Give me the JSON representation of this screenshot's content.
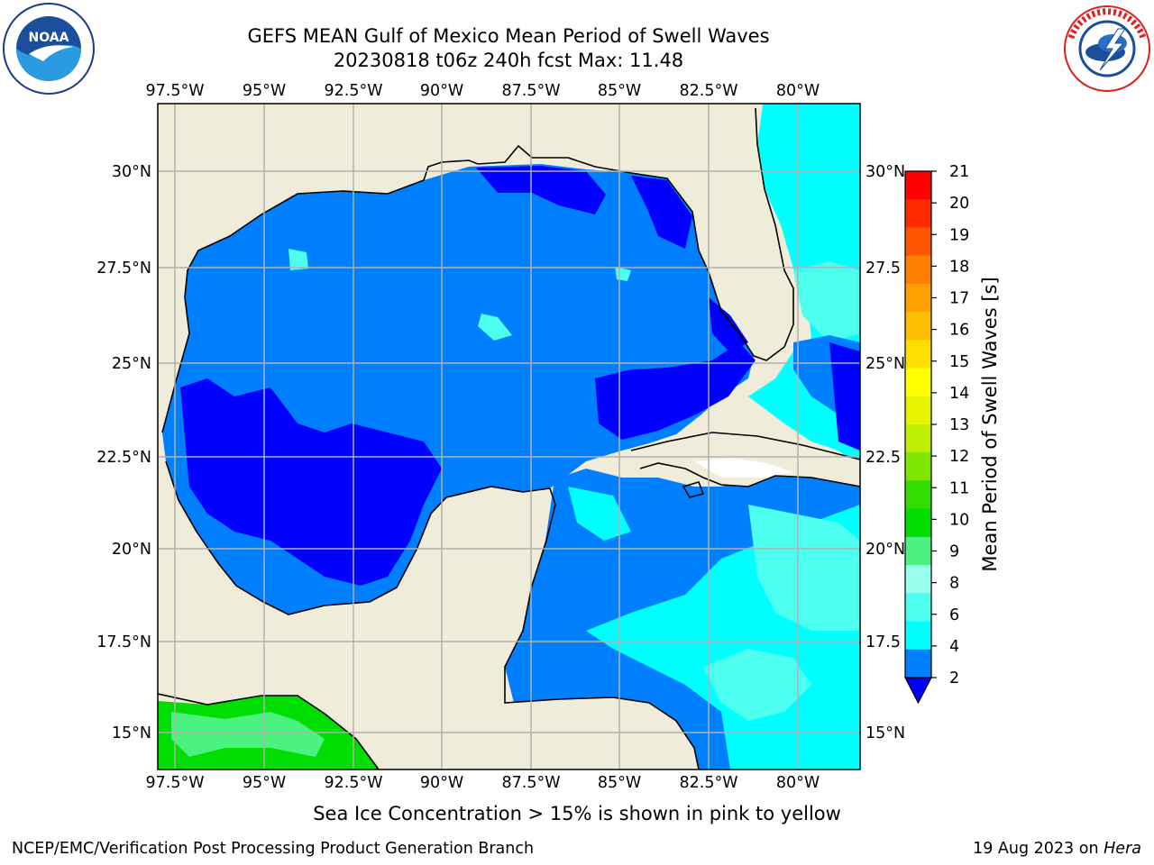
{
  "header": {
    "title_line1": "GEFS MEAN Gulf of Mexico Mean Period of Swell Waves",
    "title_line2": "20230818 t06z 240h fcst   Max: 11.48"
  },
  "logos": {
    "left": "noaa-logo",
    "right": "national-weather-service-logo"
  },
  "map": {
    "region": "Gulf of Mexico",
    "lon_labels": [
      "97.5°W",
      "95°W",
      "92.5°W",
      "90°W",
      "87.5°W",
      "85°W",
      "82.5°W",
      "80°W"
    ],
    "lat_labels_left": [
      "30°N",
      "27.5°N",
      "25°N",
      "22.5°N",
      "20°N",
      "17.5°N",
      "15°N"
    ],
    "lat_labels_right": [
      "30°N",
      "27.5",
      "25°N",
      "22.5",
      "20°N",
      "17.5",
      "15°N"
    ],
    "colors": {
      "land": "#efedda",
      "grid": "#b0b0b0",
      "no_data": "#ffffff"
    }
  },
  "colorbar": {
    "label": "Mean Period of Swell Waves [s]",
    "ticks": [
      "21",
      "20",
      "19",
      "18",
      "17",
      "16",
      "15",
      "14",
      "13",
      "12",
      "11",
      "10",
      "9",
      "8",
      "6",
      "4",
      "2"
    ],
    "colors": [
      "#ff0000",
      "#ff2a00",
      "#ff5500",
      "#ff7f00",
      "#ff9f00",
      "#ffbf00",
      "#ffdf00",
      "#ffff00",
      "#e5f500",
      "#bfef00",
      "#7fe600",
      "#33dd00",
      "#00dd00",
      "#4cf27f",
      "#99ffee",
      "#4cffee",
      "#00ffff",
      "#007fff",
      "#0000ff"
    ]
  },
  "footer": {
    "note": "Sea Ice Concentration > 15% is shown in pink to yellow",
    "left": "NCEP/EMC/Verification Post Processing Product Generation Branch",
    "right_date": "19 Aug 2023 on",
    "right_machine": "Hera"
  }
}
